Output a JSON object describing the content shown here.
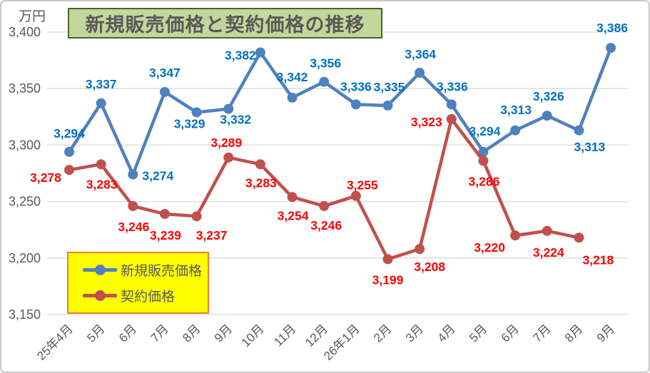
{
  "title": {
    "text": "新規販売価格と契約価格の推移"
  },
  "axis_unit_label": "万円",
  "colors": {
    "series1_line": "#4F81BD",
    "series1_label": "#0070C0",
    "series2_line": "#C0504D",
    "series2_label": "#FF0000",
    "gridline": "#D9D9D9",
    "axis_text": "#595959",
    "title_bg": "#C3D69B",
    "title_border": "#4F6228",
    "legend_bg": "#FFFF00",
    "legend_border": "#ED7D31"
  },
  "legend": {
    "position": "bottom-left-inside",
    "items": [
      {
        "label": "新規販売価格",
        "color": "#4F81BD"
      },
      {
        "label": "契約価格",
        "color": "#C0504D"
      }
    ]
  },
  "chart_data": {
    "type": "line",
    "title": "新規販売価格と契約価格の推移",
    "ylabel": "万円",
    "xlabel": "",
    "ylim": [
      3150,
      3400
    ],
    "ytick_step": 50,
    "yticks": [
      3150,
      3200,
      3250,
      3300,
      3350,
      3400
    ],
    "grid": true,
    "legend_position": "bottom-left-inside",
    "categories": [
      "25年4月",
      "5月",
      "6月",
      "7月",
      "8月",
      "9月",
      "10月",
      "11月",
      "12月",
      "26年1月",
      "2月",
      "3月",
      "4月",
      "5月",
      "6月",
      "7月",
      "8月",
      "9月"
    ],
    "series": [
      {
        "name": "新規販売価格",
        "color": "#4F81BD",
        "label_color": "#0070C0",
        "values": [
          3294,
          3337,
          3274,
          3347,
          3329,
          3332,
          3382,
          3342,
          3356,
          3336,
          3335,
          3364,
          3336,
          3294,
          3313,
          3326,
          3313,
          3386
        ],
        "label_offsets": [
          [
            0,
            -26
          ],
          [
            0,
            -27
          ],
          [
            35,
            2
          ],
          [
            0,
            -27
          ],
          [
            -10,
            16
          ],
          [
            10,
            15
          ],
          [
            -28,
            4
          ],
          [
            0,
            -29
          ],
          [
            2,
            -26
          ],
          [
            0,
            -25
          ],
          [
            2,
            -26
          ],
          [
            1,
            -26
          ],
          [
            1,
            -25
          ],
          [
            2,
            -29
          ],
          [
            1,
            -29
          ],
          [
            2,
            -27
          ],
          [
            15,
            23
          ],
          [
            2,
            -28
          ]
        ]
      },
      {
        "name": "契約価格",
        "color": "#C0504D",
        "label_color": "#FF0000",
        "values": [
          3278,
          3283,
          3246,
          3239,
          3237,
          3289,
          3283,
          3254,
          3246,
          3255,
          3199,
          3208,
          3323,
          3286,
          3220,
          3224,
          3218,
          null
        ],
        "label_offsets": [
          [
            -33,
            11
          ],
          [
            1,
            28
          ],
          [
            1,
            29
          ],
          [
            1,
            30
          ],
          [
            21,
            27
          ],
          [
            -3,
            -21
          ],
          [
            1,
            26
          ],
          [
            1,
            26
          ],
          [
            3,
            27
          ],
          [
            9,
            -15
          ],
          [
            0,
            29
          ],
          [
            14,
            25
          ],
          [
            -35,
            4
          ],
          [
            1,
            29
          ],
          [
            -36,
            17
          ],
          [
            2,
            30
          ],
          [
            27,
            31
          ],
          null
        ]
      }
    ]
  }
}
